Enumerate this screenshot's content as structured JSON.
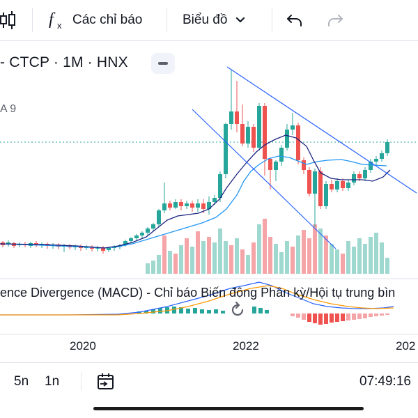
{
  "toolbar": {
    "indicators_label": "Các chỉ báo",
    "chart_type_label": "Biểu đồ"
  },
  "symbol": {
    "title": "- CTCP · 1M · HNX"
  },
  "indicators": {
    "ma_label": "A 9",
    "macd_label": "ence Divergence (MACD) - Chỉ báo Biến động Phân kỳ/Hội tụ trung bìn"
  },
  "time_axis": {
    "labels": [
      "2020",
      "2022",
      "202"
    ]
  },
  "bottom_bar": {
    "range_5n": "5n",
    "range_1n": "1n",
    "clock": "07:49:16"
  },
  "colors": {
    "up": "#26a69a",
    "down": "#ef5350",
    "vol_up": "#9fd8cf",
    "vol_down": "#f5a5a8",
    "trendline": "#2962ff",
    "ma_fast": "#1a237e",
    "ma_slow": "#2196f3",
    "price_line": "#26a69a"
  },
  "icons": {
    "candles": "candlestick-icon",
    "indicators": "fx-icon",
    "dropdown": "chevron-down-icon",
    "undo": "undo-icon",
    "redo": "redo-icon",
    "collapse": "minus-icon",
    "reload": "reload-icon",
    "goto_date": "calendar-goto-icon"
  }
}
